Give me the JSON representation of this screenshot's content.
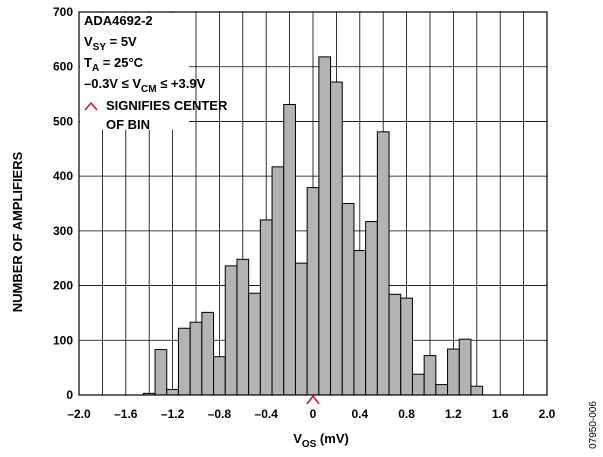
{
  "chart_data": {
    "type": "bar",
    "xlabel_main": "V",
    "xlabel_sub": "OS",
    "xlabel_unit": " (mV)",
    "ylabel": "NUMBER OF AMPLIFIERS",
    "xlim": [
      -2.0,
      2.0
    ],
    "ylim": [
      0,
      700
    ],
    "bin_width": 0.1,
    "x_ticks": [
      "–2.0",
      "–1.6",
      "–1.2",
      "–0.8",
      "–0.4",
      "0",
      "0.4",
      "0.8",
      "1.2",
      "1.6",
      "2.0"
    ],
    "x_tick_values": [
      -2.0,
      -1.6,
      -1.2,
      -0.8,
      -0.4,
      0,
      0.4,
      0.8,
      1.2,
      1.6,
      2.0
    ],
    "y_ticks": [
      "0",
      "100",
      "200",
      "300",
      "400",
      "500",
      "600",
      "700"
    ],
    "y_tick_values": [
      0,
      100,
      200,
      300,
      400,
      500,
      600,
      700
    ],
    "x_gridlines": [
      -1.8,
      -1.6,
      -1.4,
      -1.2,
      -1.0,
      -0.8,
      -0.6,
      -0.4,
      -0.2,
      0,
      0.2,
      0.4,
      0.6,
      0.8,
      1.0,
      1.2,
      1.4,
      1.6,
      1.8
    ],
    "y_gridlines": [
      100,
      200,
      300,
      400,
      500,
      600
    ],
    "bins": [
      {
        "x": -1.4,
        "value": 3
      },
      {
        "x": -1.3,
        "value": 83
      },
      {
        "x": -1.2,
        "value": 10
      },
      {
        "x": -1.1,
        "value": 122
      },
      {
        "x": -1.0,
        "value": 133
      },
      {
        "x": -0.9,
        "value": 151
      },
      {
        "x": -0.8,
        "value": 70
      },
      {
        "x": -0.7,
        "value": 236
      },
      {
        "x": -0.6,
        "value": 248
      },
      {
        "x": -0.5,
        "value": 186
      },
      {
        "x": -0.4,
        "value": 320
      },
      {
        "x": -0.3,
        "value": 417
      },
      {
        "x": -0.2,
        "value": 531
      },
      {
        "x": -0.1,
        "value": 241
      },
      {
        "x": 0.0,
        "value": 379
      },
      {
        "x": 0.1,
        "value": 618
      },
      {
        "x": 0.2,
        "value": 572
      },
      {
        "x": 0.3,
        "value": 350
      },
      {
        "x": 0.4,
        "value": 264
      },
      {
        "x": 0.5,
        "value": 317
      },
      {
        "x": 0.6,
        "value": 481
      },
      {
        "x": 0.7,
        "value": 184
      },
      {
        "x": 0.8,
        "value": 177
      },
      {
        "x": 0.9,
        "value": 38
      },
      {
        "x": 1.0,
        "value": 72
      },
      {
        "x": 1.1,
        "value": 19
      },
      {
        "x": 1.2,
        "value": 84
      },
      {
        "x": 1.3,
        "value": 102
      },
      {
        "x": 1.4,
        "value": 16
      }
    ],
    "center_marker_x": 0,
    "bar_color": "#b3b3b3",
    "bar_stroke": "#000000",
    "marker_color": "#c0143c",
    "annotation": {
      "line1": "ADA4692-2",
      "line2_main": "V",
      "line2_sub": "SY",
      "line2_rest": " = 5V",
      "line3_main": "T",
      "line3_sub": "A",
      "line3_rest": " = 25°C",
      "line4_pre": "–0.3V ≤ V",
      "line4_sub": "CM",
      "line4_post": " ≤ +3.9V",
      "line5": "SIGNIFIES CENTER",
      "line6": "OF BIN"
    },
    "figure_id": "07950-006"
  }
}
